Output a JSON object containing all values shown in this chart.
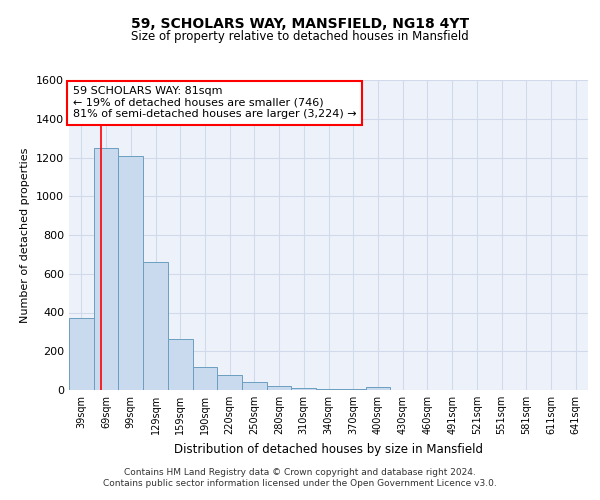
{
  "title1": "59, SCHOLARS WAY, MANSFIELD, NG18 4YT",
  "title2": "Size of property relative to detached houses in Mansfield",
  "xlabel": "Distribution of detached houses by size in Mansfield",
  "ylabel": "Number of detached properties",
  "categories": [
    "39sqm",
    "69sqm",
    "99sqm",
    "129sqm",
    "159sqm",
    "190sqm",
    "220sqm",
    "250sqm",
    "280sqm",
    "310sqm",
    "340sqm",
    "370sqm",
    "400sqm",
    "430sqm",
    "460sqm",
    "491sqm",
    "521sqm",
    "551sqm",
    "581sqm",
    "611sqm",
    "641sqm"
  ],
  "values": [
    370,
    1250,
    1210,
    660,
    265,
    120,
    75,
    40,
    20,
    10,
    5,
    5,
    18,
    0,
    0,
    0,
    0,
    0,
    0,
    0,
    0
  ],
  "bar_color": "#c9d9ee",
  "bar_edge_color": "#6a9ec0",
  "red_line_index": 1,
  "annotation_line1": "59 SCHOLARS WAY: 81sqm",
  "annotation_line2": "← 19% of detached houses are smaller (746)",
  "annotation_line3": "81% of semi-detached houses are larger (3,224) →",
  "annotation_box_color": "white",
  "annotation_box_edge": "red",
  "ylim": [
    0,
    1600
  ],
  "yticks": [
    0,
    200,
    400,
    600,
    800,
    1000,
    1200,
    1400,
    1600
  ],
  "footer_line1": "Contains HM Land Registry data © Crown copyright and database right 2024.",
  "footer_line2": "Contains public sector information licensed under the Open Government Licence v3.0.",
  "grid_color": "#d0daea",
  "background_color": "#edf2fa"
}
